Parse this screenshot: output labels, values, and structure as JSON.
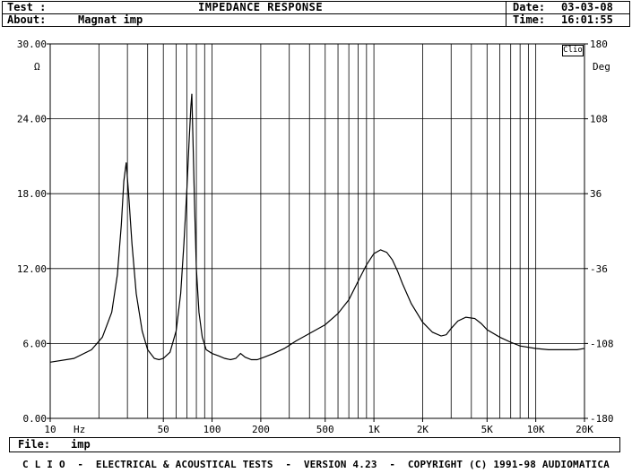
{
  "header": {
    "test_label": "Test :",
    "about_label": "About:",
    "about_value": "Magnat imp",
    "title": "IMPEDANCE RESPONSE",
    "date_label": "Date:",
    "date_value": "03-03-08",
    "time_label": "Time:",
    "time_value": "16:01:55"
  },
  "file_bar": {
    "label": "File:",
    "value": "imp"
  },
  "footer": {
    "text": "C L I O  -  ELECTRICAL & ACOUSTICAL TESTS  -  VERSION 4.23  -  COPYRIGHT (C) 1991-98 AUDIOMATICA"
  },
  "chart_data": {
    "type": "line",
    "title": "IMPEDANCE RESPONSE",
    "xscale": "log",
    "xlim": [
      10,
      20000
    ],
    "ylim": [
      0,
      30
    ],
    "y2lim": [
      -180,
      180
    ],
    "grid": true,
    "left_unit": "Ω",
    "right_unit": "Deg",
    "corner_label": "Clio",
    "x_unit_label": "Hz",
    "x_ticks": [
      {
        "v": 10,
        "label": "10"
      },
      {
        "v": 50,
        "label": "50"
      },
      {
        "v": 100,
        "label": "100"
      },
      {
        "v": 200,
        "label": "200"
      },
      {
        "v": 500,
        "label": "500"
      },
      {
        "v": 1000,
        "label": "1K"
      },
      {
        "v": 2000,
        "label": "2K"
      },
      {
        "v": 5000,
        "label": "5K"
      },
      {
        "v": 10000,
        "label": "10K"
      },
      {
        "v": 20000,
        "label": "20K"
      }
    ],
    "y_ticks": [
      {
        "v": 0,
        "label": "0.00"
      },
      {
        "v": 6,
        "label": "6.00"
      },
      {
        "v": 12,
        "label": "12.00"
      },
      {
        "v": 18,
        "label": "18.00"
      },
      {
        "v": 24,
        "label": "24.00"
      },
      {
        "v": 30,
        "label": "30.00"
      }
    ],
    "y2_ticks": [
      {
        "v": -180,
        "label": "-180"
      },
      {
        "v": -108,
        "label": "-108"
      },
      {
        "v": -36,
        "label": "-36"
      },
      {
        "v": 36,
        "label": "36"
      },
      {
        "v": 108,
        "label": "108"
      },
      {
        "v": 180,
        "label": "180"
      }
    ],
    "series": [
      {
        "x": [
          10,
          14,
          18,
          21,
          24,
          26,
          27.5,
          28.5,
          29.5,
          30.5,
          32,
          34,
          37,
          40,
          44,
          47,
          50,
          55,
          60,
          64,
          67,
          70,
          72,
          74,
          75,
          76,
          78,
          80,
          83,
          87,
          92,
          100,
          110,
          120,
          130,
          140,
          150,
          160,
          175,
          190,
          210,
          240,
          280,
          330,
          400,
          500,
          600,
          700,
          800,
          900,
          1000,
          1100,
          1200,
          1300,
          1400,
          1500,
          1700,
          2000,
          2300,
          2600,
          2800,
          3000,
          3300,
          3700,
          4200,
          4600,
          5000,
          6000,
          7000,
          8000,
          10000,
          12000,
          15000,
          18000,
          20000
        ],
        "y": [
          4.5,
          4.8,
          5.5,
          6.5,
          8.5,
          11.5,
          15.5,
          19.0,
          20.5,
          18.0,
          14.0,
          10.0,
          7.0,
          5.5,
          4.8,
          4.7,
          4.8,
          5.3,
          7.0,
          10.0,
          14.0,
          18.5,
          22.0,
          25.0,
          26.0,
          23.0,
          17.0,
          12.0,
          8.5,
          6.5,
          5.5,
          5.2,
          5.0,
          4.8,
          4.7,
          4.8,
          5.2,
          4.9,
          4.7,
          4.7,
          4.9,
          5.2,
          5.6,
          6.2,
          6.8,
          7.5,
          8.4,
          9.5,
          11.0,
          12.3,
          13.2,
          13.5,
          13.3,
          12.7,
          11.8,
          10.8,
          9.2,
          7.7,
          6.9,
          6.6,
          6.7,
          7.2,
          7.8,
          8.1,
          8.0,
          7.6,
          7.1,
          6.5,
          6.1,
          5.8,
          5.6,
          5.5,
          5.5,
          5.5,
          5.6
        ]
      }
    ]
  }
}
